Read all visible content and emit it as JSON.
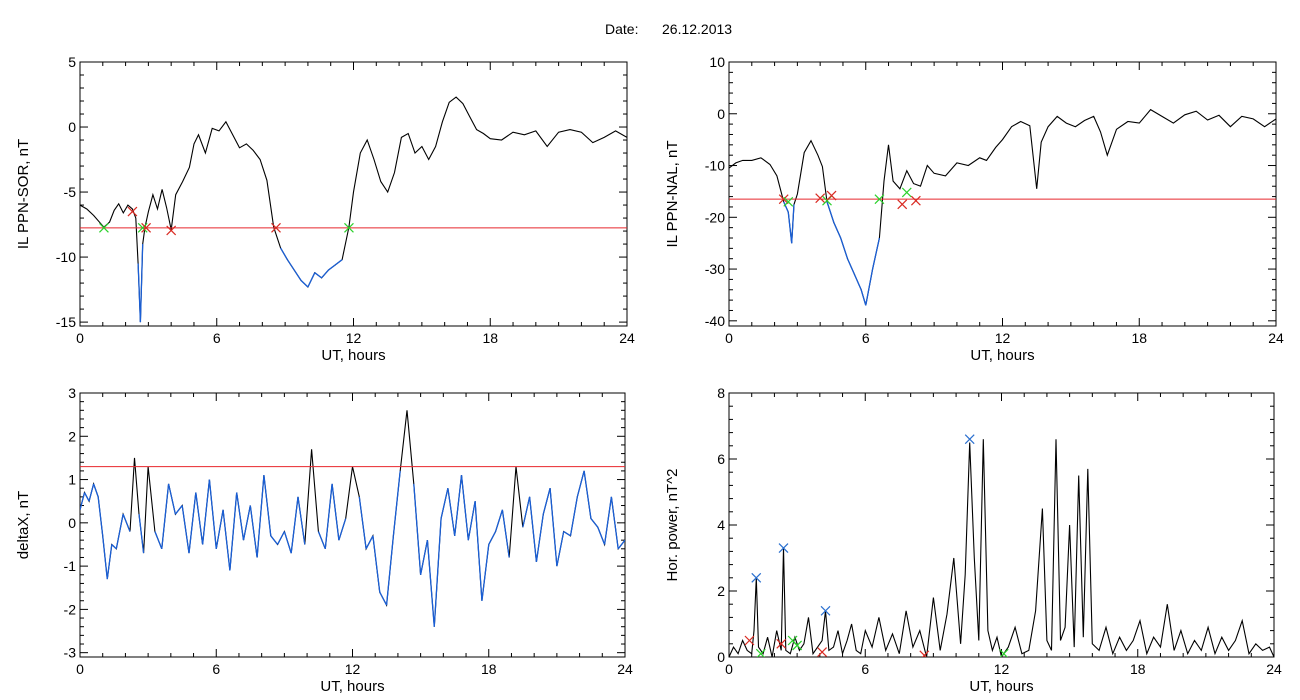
{
  "header": {
    "date_label": "Date:",
    "date_value": "26.12.2013"
  },
  "colors": {
    "trace": "#000000",
    "below_threshold": "#1a5fd6",
    "threshold": "#e8262c",
    "marker_red": "#d92a22",
    "marker_green": "#2bd12b",
    "marker_blue": "#2a6fcf"
  },
  "chart_data": [
    {
      "type": "line",
      "ylabel": "IL PPN-SOR, nT",
      "xlabel": "UT, hours",
      "xlim": [
        0,
        24
      ],
      "ylim": [
        -15.3,
        5
      ],
      "xticks": [
        0,
        6,
        12,
        18,
        24
      ],
      "yticks": [
        5,
        0,
        -5,
        -10,
        -15
      ],
      "threshold": -7.75,
      "series": [
        {
          "x": [
            0,
            0.3,
            0.6,
            0.9,
            1.05,
            1.3,
            1.5,
            1.7,
            1.9,
            2.1,
            2.3,
            2.45,
            2.55,
            2.65,
            2.75,
            2.85,
            3.0,
            3.2,
            3.4,
            3.6,
            3.8,
            4.0,
            4.2,
            4.5,
            4.8,
            5.0,
            5.2,
            5.5,
            5.8,
            6.1,
            6.4,
            6.7,
            7.0,
            7.3,
            7.6,
            7.9,
            8.2,
            8.5,
            8.8,
            9.1,
            9.4,
            9.7,
            10.0,
            10.3,
            10.6,
            10.9,
            11.2,
            11.5,
            11.8,
            12.0,
            12.3,
            12.6,
            12.9,
            13.2,
            13.5,
            13.8,
            14.1,
            14.4,
            14.7,
            15.0,
            15.3,
            15.6,
            15.9,
            16.2,
            16.5,
            16.8,
            17.1,
            17.4,
            17.7,
            18.0,
            18.5,
            19.0,
            19.5,
            20.0,
            20.5,
            21.0,
            21.5,
            22.0,
            22.5,
            23.0,
            23.5,
            24.0
          ],
          "y": [
            -6.0,
            -6.3,
            -6.8,
            -7.4,
            -7.7,
            -7.3,
            -6.4,
            -5.9,
            -6.6,
            -6.0,
            -6.3,
            -7.0,
            -10.5,
            -15.0,
            -9.0,
            -7.7,
            -6.5,
            -5.2,
            -6.3,
            -4.8,
            -6.2,
            -7.9,
            -5.2,
            -4.2,
            -3.1,
            -1.3,
            -0.6,
            -2.0,
            -0.1,
            -0.3,
            0.4,
            -0.6,
            -1.6,
            -1.3,
            -1.8,
            -2.5,
            -4.1,
            -7.7,
            -9.3,
            -10.2,
            -11.0,
            -11.8,
            -12.3,
            -11.2,
            -11.6,
            -11.0,
            -10.6,
            -10.2,
            -7.7,
            -5.0,
            -2.0,
            -1.0,
            -2.5,
            -4.2,
            -5.0,
            -3.5,
            -0.8,
            -0.5,
            -2.0,
            -1.5,
            -2.5,
            -1.5,
            0.4,
            1.9,
            2.3,
            1.8,
            0.8,
            -0.2,
            -0.5,
            -0.9,
            -1.0,
            -0.4,
            -0.6,
            -0.3,
            -1.5,
            -0.4,
            -0.2,
            -0.4,
            -1.2,
            -0.8,
            -0.3,
            -0.8
          ]
        }
      ],
      "markers": [
        {
          "x": 1.05,
          "y": -7.75,
          "color": "green"
        },
        {
          "x": 2.3,
          "y": -6.5,
          "color": "red"
        },
        {
          "x": 2.75,
          "y": -7.75,
          "color": "green"
        },
        {
          "x": 2.9,
          "y": -7.75,
          "color": "red"
        },
        {
          "x": 4.0,
          "y": -7.95,
          "color": "red"
        },
        {
          "x": 8.6,
          "y": -7.75,
          "color": "red"
        },
        {
          "x": 11.8,
          "y": -7.75,
          "color": "green"
        }
      ]
    },
    {
      "type": "line",
      "ylabel": "IL PPN-NAL, nT",
      "xlabel": "UT, hours",
      "xlim": [
        0,
        24
      ],
      "ylim": [
        -41,
        10
      ],
      "xticks": [
        0,
        6,
        12,
        18,
        24
      ],
      "yticks": [
        10,
        0,
        -10,
        -20,
        -30,
        -40
      ],
      "threshold": -16.5,
      "series": [
        {
          "x": [
            0,
            0.3,
            0.6,
            1.0,
            1.4,
            1.8,
            2.1,
            2.4,
            2.6,
            2.75,
            2.85,
            3.0,
            3.3,
            3.6,
            3.9,
            4.1,
            4.3,
            4.6,
            4.9,
            5.2,
            5.5,
            5.8,
            6.0,
            6.3,
            6.6,
            6.8,
            7.0,
            7.2,
            7.5,
            7.8,
            8.1,
            8.4,
            8.7,
            9.0,
            9.5,
            10.0,
            10.5,
            11.0,
            11.3,
            11.7,
            12.0,
            12.4,
            12.8,
            13.2,
            13.5,
            13.7,
            14.0,
            14.4,
            14.8,
            15.2,
            15.6,
            16.0,
            16.3,
            16.6,
            17.0,
            17.5,
            18.0,
            18.5,
            19.0,
            19.5,
            20.0,
            20.5,
            21.0,
            21.5,
            22.0,
            22.5,
            23.0,
            23.5,
            24.0
          ],
          "y": [
            -10.5,
            -9.5,
            -9.0,
            -9.0,
            -8.5,
            -9.8,
            -12.0,
            -17.0,
            -19.0,
            -25.0,
            -17.5,
            -15.5,
            -7.5,
            -5.2,
            -8.0,
            -10.2,
            -17.0,
            -21.0,
            -24.0,
            -28.0,
            -31.0,
            -34.0,
            -37.0,
            -30.0,
            -24.0,
            -13.0,
            -6.0,
            -13.0,
            -14.5,
            -11.0,
            -13.5,
            -14.0,
            -10.0,
            -11.5,
            -12.0,
            -9.5,
            -10.0,
            -8.5,
            -9.0,
            -6.5,
            -5.0,
            -2.5,
            -1.5,
            -2.3,
            -14.5,
            -5.5,
            -2.5,
            -0.5,
            -1.8,
            -2.5,
            -1.3,
            -0.5,
            -3.5,
            -8.0,
            -3.0,
            -1.5,
            -1.8,
            0.8,
            -0.5,
            -1.8,
            -0.2,
            0.5,
            -1.2,
            -0.3,
            -2.5,
            -0.5,
            -1.0,
            -2.5,
            -1.0
          ]
        }
      ],
      "markers": [
        {
          "x": 2.4,
          "y": -16.5,
          "color": "red"
        },
        {
          "x": 2.6,
          "y": -17.0,
          "color": "green"
        },
        {
          "x": 4.0,
          "y": -16.3,
          "color": "red"
        },
        {
          "x": 4.3,
          "y": -16.8,
          "color": "green"
        },
        {
          "x": 4.5,
          "y": -15.8,
          "color": "red"
        },
        {
          "x": 6.6,
          "y": -16.5,
          "color": "green"
        },
        {
          "x": 7.6,
          "y": -17.5,
          "color": "red"
        },
        {
          "x": 7.8,
          "y": -15.2,
          "color": "green"
        },
        {
          "x": 8.2,
          "y": -16.8,
          "color": "red"
        }
      ]
    },
    {
      "type": "line",
      "ylabel": "deltaX, nT",
      "xlabel": "UT, hours",
      "xlim": [
        0,
        24
      ],
      "ylim": [
        -3.1,
        3
      ],
      "xticks": [
        0,
        6,
        12,
        18,
        24
      ],
      "yticks": [
        3,
        2,
        1,
        0,
        -1,
        -2,
        -3
      ],
      "threshold": 1.3,
      "series": [
        {
          "x": [
            0,
            0.2,
            0.4,
            0.6,
            0.8,
            1.0,
            1.2,
            1.4,
            1.6,
            1.9,
            2.2,
            2.4,
            2.6,
            2.8,
            3.0,
            3.3,
            3.6,
            3.9,
            4.2,
            4.5,
            4.8,
            5.1,
            5.4,
            5.7,
            6.0,
            6.3,
            6.6,
            6.9,
            7.2,
            7.5,
            7.8,
            8.1,
            8.4,
            8.7,
            9.0,
            9.3,
            9.6,
            9.9,
            10.2,
            10.5,
            10.8,
            11.1,
            11.4,
            11.7,
            12.0,
            12.3,
            12.6,
            12.9,
            13.2,
            13.5,
            13.8,
            14.1,
            14.4,
            14.7,
            15.0,
            15.3,
            15.6,
            15.9,
            16.2,
            16.5,
            16.8,
            17.1,
            17.4,
            17.7,
            18.0,
            18.3,
            18.6,
            18.9,
            19.2,
            19.5,
            19.8,
            20.1,
            20.4,
            20.7,
            21.0,
            21.3,
            21.6,
            21.9,
            22.2,
            22.5,
            22.8,
            23.1,
            23.4,
            23.7,
            24.0
          ],
          "y": [
            0.3,
            0.7,
            0.5,
            0.9,
            0.6,
            -0.3,
            -1.3,
            -0.5,
            -0.6,
            0.2,
            -0.2,
            1.5,
            0.2,
            -0.7,
            1.3,
            -0.2,
            -0.6,
            0.9,
            0.2,
            0.4,
            -0.7,
            0.7,
            -0.5,
            1.0,
            -0.6,
            0.3,
            -1.1,
            0.7,
            -0.4,
            0.4,
            -0.8,
            1.1,
            -0.3,
            -0.5,
            -0.2,
            -0.7,
            0.6,
            -0.5,
            1.7,
            -0.2,
            -0.6,
            0.9,
            -0.4,
            0.1,
            1.3,
            0.6,
            -0.6,
            -0.3,
            -1.6,
            -1.9,
            -0.3,
            1.2,
            2.6,
            0.9,
            -1.2,
            -0.4,
            -2.4,
            0.1,
            0.8,
            -0.3,
            1.1,
            -0.4,
            0.5,
            -1.8,
            -0.5,
            -0.2,
            0.3,
            -0.8,
            1.3,
            -0.1,
            0.6,
            -0.9,
            0.2,
            0.8,
            -1.0,
            -0.2,
            -0.3,
            0.6,
            1.2,
            0.1,
            -0.1,
            -0.5,
            0.6,
            -0.6,
            -0.4
          ]
        }
      ],
      "markers": []
    },
    {
      "type": "line",
      "ylabel": "Hor. power, nT^2",
      "xlabel": "UT, hours",
      "xlim": [
        0,
        24
      ],
      "ylim": [
        0,
        8
      ],
      "xticks": [
        0,
        6,
        12,
        18,
        24
      ],
      "yticks": [
        8,
        6,
        4,
        2,
        0
      ],
      "series": [
        {
          "x": [
            0,
            0.2,
            0.4,
            0.6,
            0.8,
            1.0,
            1.1,
            1.2,
            1.3,
            1.5,
            1.7,
            1.9,
            2.1,
            2.3,
            2.4,
            2.5,
            2.7,
            2.9,
            3.1,
            3.3,
            3.5,
            3.7,
            3.9,
            4.1,
            4.25,
            4.4,
            4.6,
            4.8,
            5.0,
            5.2,
            5.4,
            5.6,
            5.8,
            6.0,
            6.3,
            6.6,
            6.9,
            7.2,
            7.5,
            7.8,
            8.1,
            8.4,
            8.7,
            9.0,
            9.3,
            9.6,
            9.9,
            10.2,
            10.4,
            10.6,
            10.8,
            11.0,
            11.2,
            11.4,
            11.6,
            11.8,
            12.0,
            12.3,
            12.6,
            12.9,
            13.2,
            13.5,
            13.8,
            14.0,
            14.2,
            14.4,
            14.6,
            14.8,
            15.0,
            15.2,
            15.4,
            15.6,
            15.8,
            16.0,
            16.3,
            16.6,
            16.9,
            17.2,
            17.5,
            17.8,
            18.1,
            18.4,
            18.7,
            19.0,
            19.3,
            19.6,
            19.9,
            20.2,
            20.5,
            20.8,
            21.1,
            21.4,
            21.7,
            22.0,
            22.3,
            22.6,
            22.9,
            23.2,
            23.5,
            23.8,
            24.0
          ],
          "y": [
            0.0,
            0.3,
            0.1,
            0.5,
            0.2,
            0.1,
            0.8,
            2.4,
            0.3,
            0.1,
            0.6,
            0.0,
            0.8,
            0.2,
            3.3,
            0.2,
            0.1,
            0.6,
            0.2,
            0.4,
            1.2,
            0.1,
            0.3,
            0.5,
            1.4,
            0.2,
            0.3,
            0.8,
            0.1,
            0.5,
            1.0,
            0.2,
            0.1,
            0.8,
            0.3,
            1.2,
            0.2,
            0.7,
            0.1,
            1.4,
            0.3,
            0.8,
            0.0,
            1.8,
            0.2,
            1.3,
            3.0,
            0.4,
            2.5,
            6.5,
            3.0,
            0.5,
            6.6,
            0.8,
            0.2,
            0.6,
            0.0,
            0.3,
            0.9,
            0.1,
            0.2,
            1.4,
            4.5,
            0.5,
            0.2,
            6.6,
            0.5,
            0.9,
            4.0,
            0.3,
            5.5,
            0.6,
            5.7,
            0.4,
            0.2,
            0.9,
            0.1,
            0.6,
            0.2,
            0.5,
            1.1,
            0.1,
            0.6,
            0.3,
            1.6,
            0.2,
            0.8,
            0.1,
            0.5,
            0.2,
            0.9,
            0.1,
            0.6,
            0.2,
            0.5,
            1.1,
            0.1,
            0.4,
            0.2,
            0.3,
            0.0
          ]
        }
      ],
      "markers": [
        {
          "x": 1.2,
          "y": 2.4,
          "color": "blue"
        },
        {
          "x": 2.4,
          "y": 3.3,
          "color": "blue"
        },
        {
          "x": 4.25,
          "y": 1.4,
          "color": "blue"
        },
        {
          "x": 10.6,
          "y": 6.6,
          "color": "blue"
        },
        {
          "x": 0.9,
          "y": 0.5,
          "color": "red"
        },
        {
          "x": 1.4,
          "y": 0.1,
          "color": "green"
        },
        {
          "x": 2.3,
          "y": 0.4,
          "color": "red"
        },
        {
          "x": 2.8,
          "y": 0.5,
          "color": "green"
        },
        {
          "x": 3.0,
          "y": 0.35,
          "color": "green"
        },
        {
          "x": 4.1,
          "y": 0.15,
          "color": "red"
        },
        {
          "x": 8.6,
          "y": 0.05,
          "color": "red"
        },
        {
          "x": 12.1,
          "y": 0.1,
          "color": "green"
        }
      ]
    }
  ]
}
